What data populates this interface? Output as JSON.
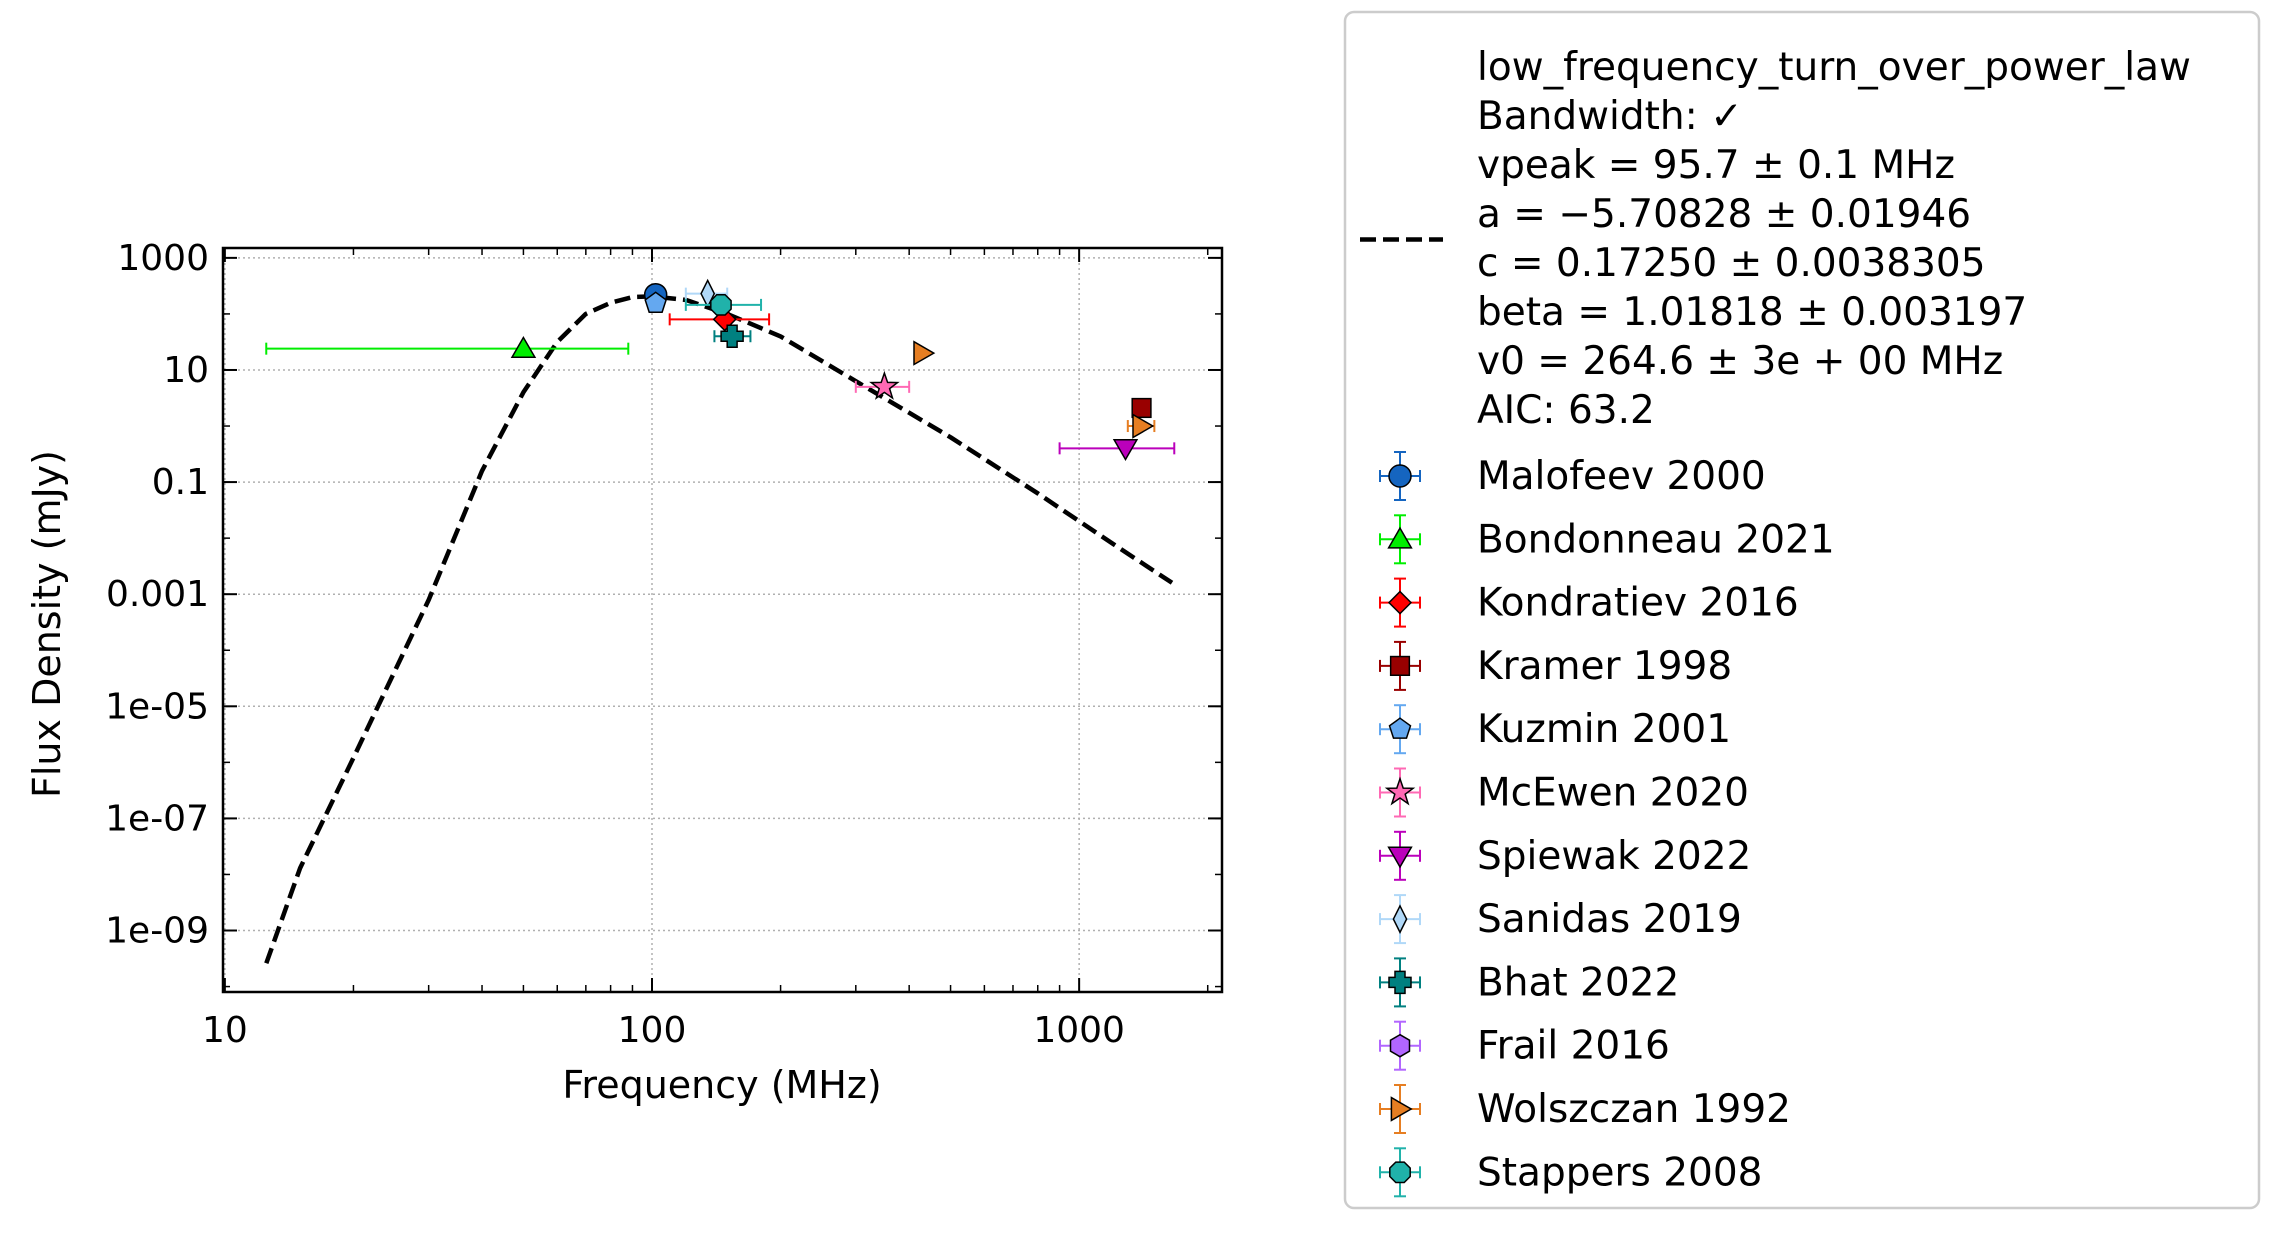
{
  "chart_data": {
    "type": "scatter",
    "title": "",
    "xlabel": "Frequency (MHz)",
    "ylabel": "Flux Density (mJy)",
    "xscale": "log",
    "yscale": "log",
    "xlim": [
      9.9,
      2160
    ],
    "ylim": [
      8e-11,
      1500
    ],
    "xticks": [
      10,
      100,
      1000
    ],
    "xtick_labels": [
      "10",
      "100",
      "1000"
    ],
    "yticks": [
      1000,
      10,
      0.1,
      0.001,
      1e-05,
      1e-07,
      1e-09
    ],
    "ytick_labels": [
      "1000",
      "10",
      "0.1",
      "0.001",
      "1e-05",
      "1e-07",
      "1e-09"
    ],
    "grid": true,
    "legend_position": "outside-right",
    "fit": {
      "name": "low_frequency_turn_over_power_law",
      "style": "dashed",
      "color": "#000000",
      "x_range": [
        12.5,
        1650
      ],
      "vpeak": 95.7,
      "a": -5.70828,
      "c": 0.1725,
      "beta": 1.01818,
      "v0": 264.6,
      "curve_points": [
        [
          12.5,
          2.6e-10
        ],
        [
          15,
          1.3e-08
        ],
        [
          20,
          1.2e-06
        ],
        [
          30,
          0.00079
        ],
        [
          40,
          0.158
        ],
        [
          50,
          4.0
        ],
        [
          60,
          31.6
        ],
        [
          70,
          100
        ],
        [
          80,
          158
        ],
        [
          90,
          200
        ],
        [
          100,
          205
        ],
        [
          120,
          178
        ],
        [
          150,
          100
        ],
        [
          200,
          39.8
        ],
        [
          300,
          6.3
        ],
        [
          500,
          0.63
        ],
        [
          800,
          0.063
        ],
        [
          1200,
          0.0079
        ],
        [
          1650,
          0.0016
        ]
      ],
      "legend_lines": [
        "low_frequency_turn_over_power_law",
        "Bandwidth: ✓",
        "vpeak = 95.7 ± 0.1 MHz",
        "a = −5.70828 ± 0.01946",
        "c = 0.17250 ± 0.0038305",
        "beta = 1.01818 ± 0.003197",
        "v0 = 264.6 ± 3e + 00 MHz",
        "AIC: 63.2"
      ]
    },
    "series": [
      {
        "name": "Malofeev 2000",
        "marker": "circle",
        "color": "#1565c0",
        "points": [
          {
            "x": 102,
            "y": 220
          }
        ]
      },
      {
        "name": "Bondonneau 2021",
        "marker": "triangle-up",
        "color": "#00ee00",
        "points": [
          {
            "x": 50,
            "y": 24,
            "xerr": [
              12.5,
              88
            ]
          }
        ]
      },
      {
        "name": "Kondratiev 2016",
        "marker": "diamond",
        "color": "#ff0000",
        "points": [
          {
            "x": 148,
            "y": 80,
            "xerr": [
              110,
              188
            ]
          }
        ]
      },
      {
        "name": "Kramer 1998",
        "marker": "square",
        "color": "#990000",
        "points": [
          {
            "x": 1400,
            "y": 2.1
          }
        ]
      },
      {
        "name": "Kuzmin 2001",
        "marker": "pentagon",
        "color": "#64a8f0",
        "points": [
          {
            "x": 102,
            "y": 155
          }
        ]
      },
      {
        "name": "McEwen 2020",
        "marker": "star",
        "color": "#ff69b4",
        "points": [
          {
            "x": 350,
            "y": 5,
            "xerr": [
              300,
              400
            ]
          }
        ]
      },
      {
        "name": "Spiewak 2022",
        "marker": "triangle-down",
        "color": "#bb00bb",
        "points": [
          {
            "x": 1284,
            "y": 0.4,
            "xerr": [
              900,
              1670
            ]
          }
        ]
      },
      {
        "name": "Sanidas 2019",
        "marker": "thin-diamond",
        "color": "#b0d8f8",
        "points": [
          {
            "x": 135,
            "y": 230,
            "xerr": [
              120,
              150
            ]
          }
        ]
      },
      {
        "name": "Bhat 2022",
        "marker": "plus",
        "color": "#008080",
        "points": [
          {
            "x": 154,
            "y": 40,
            "xerr": [
              140,
              170
            ]
          }
        ]
      },
      {
        "name": "Frail 2016",
        "marker": "hexagon",
        "color": "#b266ff",
        "points": []
      },
      {
        "name": "Wolszczan 1992",
        "marker": "triangle-right",
        "color": "#e67e22",
        "points": [
          {
            "x": 430,
            "y": 20
          },
          {
            "x": 1400,
            "y": 1.0,
            "xerr": [
              1300,
              1500
            ]
          }
        ]
      },
      {
        "name": "Stappers 2008",
        "marker": "octagon",
        "color": "#20b2aa",
        "points": [
          {
            "x": 145,
            "y": 145,
            "xerr": [
              120,
              180
            ]
          }
        ]
      }
    ]
  }
}
